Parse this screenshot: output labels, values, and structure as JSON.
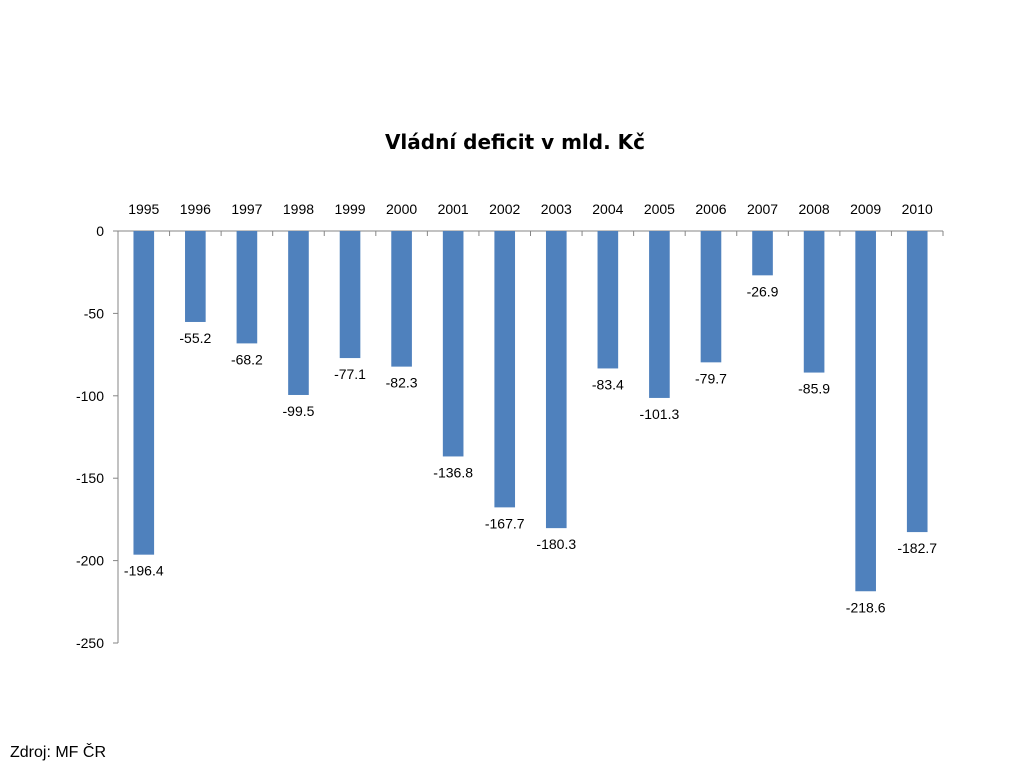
{
  "chart_data": {
    "type": "bar",
    "title": "Vládní deficit v mld. Kč",
    "categories": [
      "1995",
      "1996",
      "1997",
      "1998",
      "1999",
      "2000",
      "2001",
      "2002",
      "2003",
      "2004",
      "2005",
      "2006",
      "2007",
      "2008",
      "2009",
      "2010"
    ],
    "values": [
      -196.4,
      -55.2,
      -68.2,
      -99.5,
      -77.1,
      -82.3,
      -136.8,
      -167.7,
      -180.3,
      -83.4,
      -101.3,
      -79.7,
      -26.9,
      -85.9,
      -218.6,
      -182.7
    ],
    "data_labels": [
      "-196.4",
      "-55.2",
      "-68.2",
      "-99.5",
      "-77.1",
      "-82.3",
      "-136.8",
      "-167.7",
      "-180.3",
      "-83.4",
      "-101.3",
      "-79.7",
      "-26.9",
      "-85.9",
      "-218.6",
      "-182.7"
    ],
    "yticks": [
      0,
      -50,
      -100,
      -150,
      -200,
      -250
    ],
    "ylim": [
      -250,
      0
    ],
    "xlabel": "",
    "ylabel": "",
    "bar_color": "#4F81BD",
    "grid": false,
    "legend": "none",
    "category_axis_position": "top"
  },
  "source": "Zdroj: MF ČR"
}
